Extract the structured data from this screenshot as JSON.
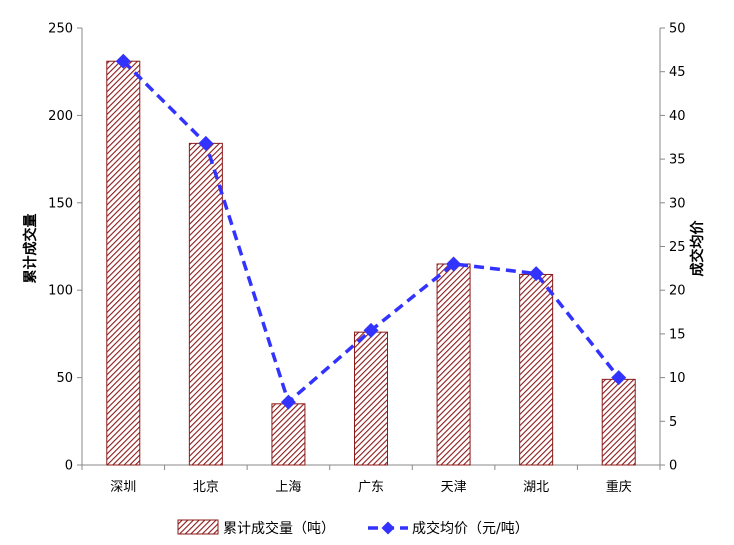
{
  "chart_data": {
    "type": "bar+line",
    "categories": [
      "深圳",
      "北京",
      "上海",
      "广东",
      "天津",
      "湖北",
      "重庆"
    ],
    "series": [
      {
        "name": "累计成交量（吨）",
        "type": "bar",
        "axis": "left",
        "values": [
          231,
          184,
          35,
          76,
          115,
          109,
          49
        ],
        "color": "#8b1a1a"
      },
      {
        "name": "成交均价（元/吨）",
        "type": "line",
        "axis": "right",
        "values": [
          46.2,
          36.8,
          7.2,
          15.4,
          23.0,
          21.9,
          10.0
        ],
        "color": "#3333ff"
      }
    ],
    "ylabel_left": "累计成交量",
    "ylabel_right": "成交均价",
    "ylim_left": [
      0,
      250
    ],
    "yticks_left": [
      0,
      50,
      100,
      150,
      200,
      250
    ],
    "ylim_right": [
      0,
      50
    ],
    "yticks_right": [
      0,
      5,
      10,
      15,
      20,
      25,
      30,
      35,
      40,
      45,
      50
    ],
    "grid": false,
    "legend_position": "bottom"
  }
}
